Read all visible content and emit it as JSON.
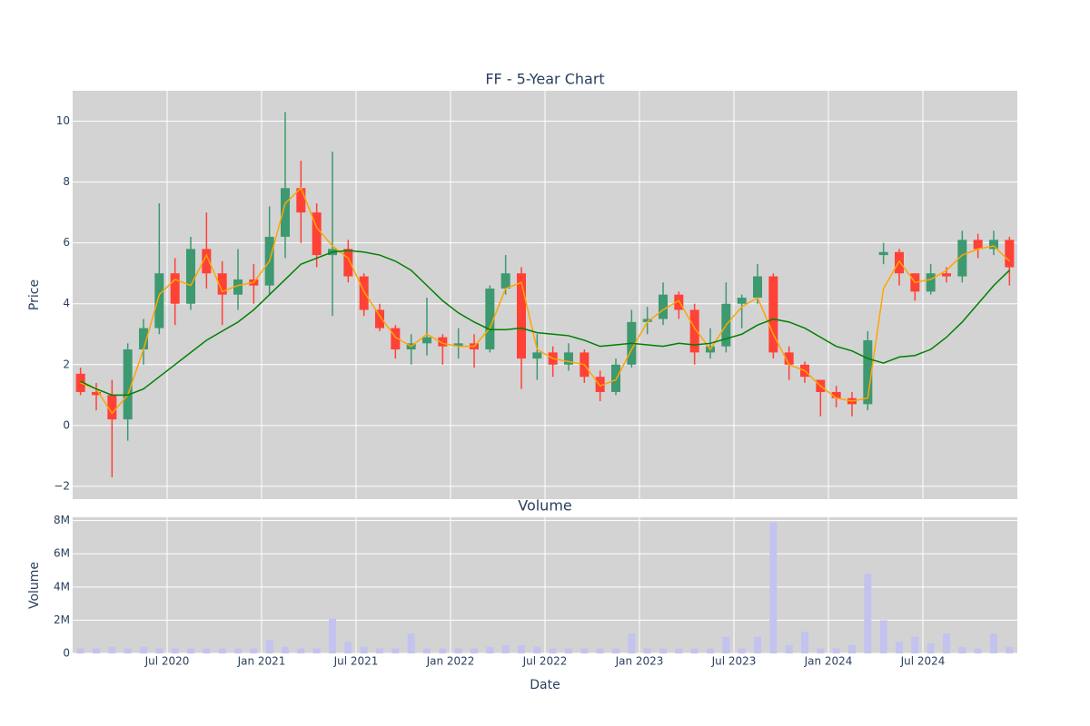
{
  "chart_data": [
    {
      "type": "candlestick",
      "title": "FF - 5-Year Chart",
      "ylabel": "Price",
      "x": [
        "2020-01",
        "2020-02",
        "2020-03",
        "2020-04",
        "2020-05",
        "2020-06",
        "2020-07",
        "2020-08",
        "2020-09",
        "2020-10",
        "2020-11",
        "2020-12",
        "2021-01",
        "2021-02",
        "2021-03",
        "2021-04",
        "2021-05",
        "2021-06",
        "2021-07",
        "2021-08",
        "2021-09",
        "2021-10",
        "2021-11",
        "2021-12",
        "2022-01",
        "2022-02",
        "2022-03",
        "2022-04",
        "2022-05",
        "2022-06",
        "2022-07",
        "2022-08",
        "2022-09",
        "2022-10",
        "2022-11",
        "2022-12",
        "2023-01",
        "2023-02",
        "2023-03",
        "2023-04",
        "2023-05",
        "2023-06",
        "2023-07",
        "2023-08",
        "2023-09",
        "2023-10",
        "2023-11",
        "2023-12",
        "2024-01",
        "2024-02",
        "2024-03",
        "2024-04",
        "2024-05",
        "2024-06",
        "2024-07",
        "2024-08",
        "2024-09",
        "2024-10",
        "2024-11",
        "2024-12"
      ],
      "open": [
        1.7,
        1.1,
        1.0,
        0.2,
        2.5,
        3.2,
        5.0,
        4.0,
        5.8,
        5.0,
        4.3,
        4.8,
        4.6,
        6.2,
        7.8,
        7.0,
        5.6,
        5.8,
        4.9,
        3.8,
        3.2,
        2.5,
        2.7,
        2.9,
        2.6,
        2.7,
        2.5,
        4.5,
        5.0,
        2.2,
        2.4,
        2.0,
        2.4,
        1.6,
        1.1,
        2.0,
        3.4,
        3.5,
        4.3,
        3.8,
        2.4,
        2.6,
        4.0,
        4.2,
        4.9,
        2.4,
        2.0,
        1.5,
        1.1,
        0.9,
        0.7,
        5.6,
        5.7,
        5.0,
        4.4,
        5.0,
        4.9,
        6.1,
        5.8,
        6.1
      ],
      "high": [
        1.9,
        1.4,
        1.5,
        2.7,
        3.5,
        7.3,
        5.5,
        6.2,
        7.0,
        5.4,
        5.8,
        5.3,
        7.2,
        10.3,
        8.7,
        7.3,
        9.0,
        6.1,
        5.0,
        4.0,
        3.3,
        3.0,
        4.2,
        3.0,
        3.2,
        3.0,
        4.6,
        5.6,
        5.2,
        3.0,
        2.6,
        2.7,
        2.5,
        1.8,
        2.2,
        3.8,
        3.9,
        4.7,
        4.4,
        4.0,
        3.2,
        4.7,
        4.3,
        5.3,
        5.0,
        2.6,
        2.1,
        1.5,
        1.3,
        1.1,
        3.1,
        6.0,
        5.8,
        5.0,
        5.3,
        5.2,
        6.4,
        6.3,
        6.4,
        6.2
      ],
      "low": [
        1.0,
        0.5,
        -1.7,
        -0.5,
        2.0,
        3.0,
        3.3,
        3.8,
        4.5,
        3.3,
        3.8,
        4.0,
        4.3,
        5.5,
        6.0,
        5.2,
        3.6,
        4.7,
        3.6,
        3.1,
        2.2,
        2.0,
        2.3,
        2.0,
        2.2,
        1.9,
        2.4,
        4.3,
        1.2,
        1.5,
        1.6,
        1.8,
        1.4,
        0.8,
        1.0,
        1.9,
        3.0,
        3.3,
        3.5,
        2.0,
        2.2,
        2.4,
        3.2,
        4.0,
        2.2,
        1.5,
        1.4,
        0.3,
        0.6,
        0.3,
        0.5,
        5.3,
        4.6,
        4.1,
        4.3,
        4.7,
        4.7,
        5.5,
        5.6,
        4.6
      ],
      "close": [
        1.1,
        1.0,
        0.2,
        2.5,
        3.2,
        5.0,
        4.0,
        5.8,
        5.0,
        4.3,
        4.8,
        4.6,
        6.2,
        7.8,
        7.0,
        5.6,
        5.8,
        4.9,
        3.8,
        3.2,
        2.5,
        2.7,
        2.9,
        2.6,
        2.7,
        2.5,
        4.5,
        5.0,
        2.2,
        2.4,
        2.0,
        2.4,
        1.6,
        1.1,
        2.0,
        3.4,
        3.5,
        4.3,
        3.8,
        2.4,
        2.6,
        4.0,
        4.2,
        4.9,
        2.4,
        2.0,
        1.6,
        1.1,
        0.9,
        0.7,
        2.8,
        5.7,
        5.0,
        4.4,
        5.0,
        4.9,
        6.1,
        5.8,
        6.1,
        5.2
      ],
      "increasing_color": "#3d9970",
      "decreasing_color": "#ff4136",
      "lines": [
        {
          "color": "orange",
          "values": [
            1.4,
            1.2,
            0.4,
            1.0,
            2.5,
            4.3,
            4.8,
            4.6,
            5.6,
            4.4,
            4.6,
            4.7,
            5.4,
            7.3,
            7.8,
            6.5,
            5.9,
            5.5,
            4.4,
            3.6,
            2.9,
            2.6,
            3.0,
            2.7,
            2.6,
            2.6,
            3.2,
            4.5,
            4.7,
            2.5,
            2.2,
            2.1,
            2.0,
            1.3,
            1.5,
            2.5,
            3.4,
            3.8,
            4.1,
            3.2,
            2.5,
            3.3,
            3.9,
            4.2,
            3.0,
            2.0,
            1.8,
            1.3,
            0.9,
            0.8,
            0.9,
            4.5,
            5.4,
            4.7,
            4.8,
            5.1,
            5.6,
            5.8,
            5.9,
            5.4
          ]
        },
        {
          "color": "green",
          "values": [
            1.45,
            1.2,
            1.0,
            1.0,
            1.2,
            1.6,
            2.0,
            2.4,
            2.8,
            3.1,
            3.4,
            3.8,
            4.3,
            4.8,
            5.3,
            5.5,
            5.7,
            5.75,
            5.7,
            5.6,
            5.4,
            5.1,
            4.6,
            4.1,
            3.7,
            3.4,
            3.15,
            3.15,
            3.2,
            3.05,
            3.0,
            2.95,
            2.8,
            2.6,
            2.65,
            2.7,
            2.65,
            2.6,
            2.7,
            2.65,
            2.7,
            2.85,
            3.0,
            3.3,
            3.5,
            3.4,
            3.2,
            2.9,
            2.6,
            2.45,
            2.2,
            2.05,
            2.25,
            2.3,
            2.5,
            2.9,
            3.4,
            4.0,
            4.6,
            5.1
          ]
        }
      ],
      "xlim": [
        "2020-01",
        "2025-01"
      ],
      "ylim": [
        -2.42,
        11.0
      ],
      "yticks": [
        {
          "value": -2,
          "label": "−2"
        },
        0,
        2,
        4,
        6,
        8,
        10
      ],
      "background": "#d3d3d3",
      "grid": true
    },
    {
      "type": "bar",
      "title": "Volume",
      "ylabel": "Volume",
      "xlabel": "Date",
      "color": "#c3c3ef",
      "values": [
        300000,
        300000,
        400000,
        300000,
        400000,
        300000,
        300000,
        300000,
        300000,
        300000,
        300000,
        300000,
        800000,
        400000,
        300000,
        300000,
        2100000,
        700000,
        400000,
        300000,
        300000,
        1200000,
        300000,
        300000,
        300000,
        300000,
        400000,
        500000,
        500000,
        400000,
        300000,
        300000,
        300000,
        300000,
        300000,
        1200000,
        300000,
        300000,
        300000,
        300000,
        300000,
        1000000,
        300000,
        1000000,
        7900000,
        500000,
        1300000,
        300000,
        300000,
        500000,
        4800000,
        2000000,
        700000,
        1000000,
        600000,
        1200000,
        400000,
        300000,
        1200000,
        400000
      ],
      "ylim": [
        0,
        8200000
      ],
      "yticks": [
        0,
        {
          "value": 2000000,
          "label": "2M"
        },
        {
          "value": 4000000,
          "label": "4M"
        },
        {
          "value": 6000000,
          "label": "6M"
        },
        {
          "value": 8000000,
          "label": "8M"
        }
      ],
      "xticks": [
        {
          "value": "2020-07",
          "label": "Jul 2020"
        },
        {
          "value": "2021-01",
          "label": "Jan 2021"
        },
        {
          "value": "2021-07",
          "label": "Jul 2021"
        },
        {
          "value": "2022-01",
          "label": "Jan 2022"
        },
        {
          "value": "2022-07",
          "label": "Jul 2022"
        },
        {
          "value": "2023-01",
          "label": "Jan 2023"
        },
        {
          "value": "2023-07",
          "label": "Jul 2023"
        },
        {
          "value": "2024-01",
          "label": "Jan 2024"
        },
        {
          "value": "2024-07",
          "label": "Jul 2024"
        }
      ],
      "background": "#d3d3d3",
      "grid": true
    }
  ]
}
